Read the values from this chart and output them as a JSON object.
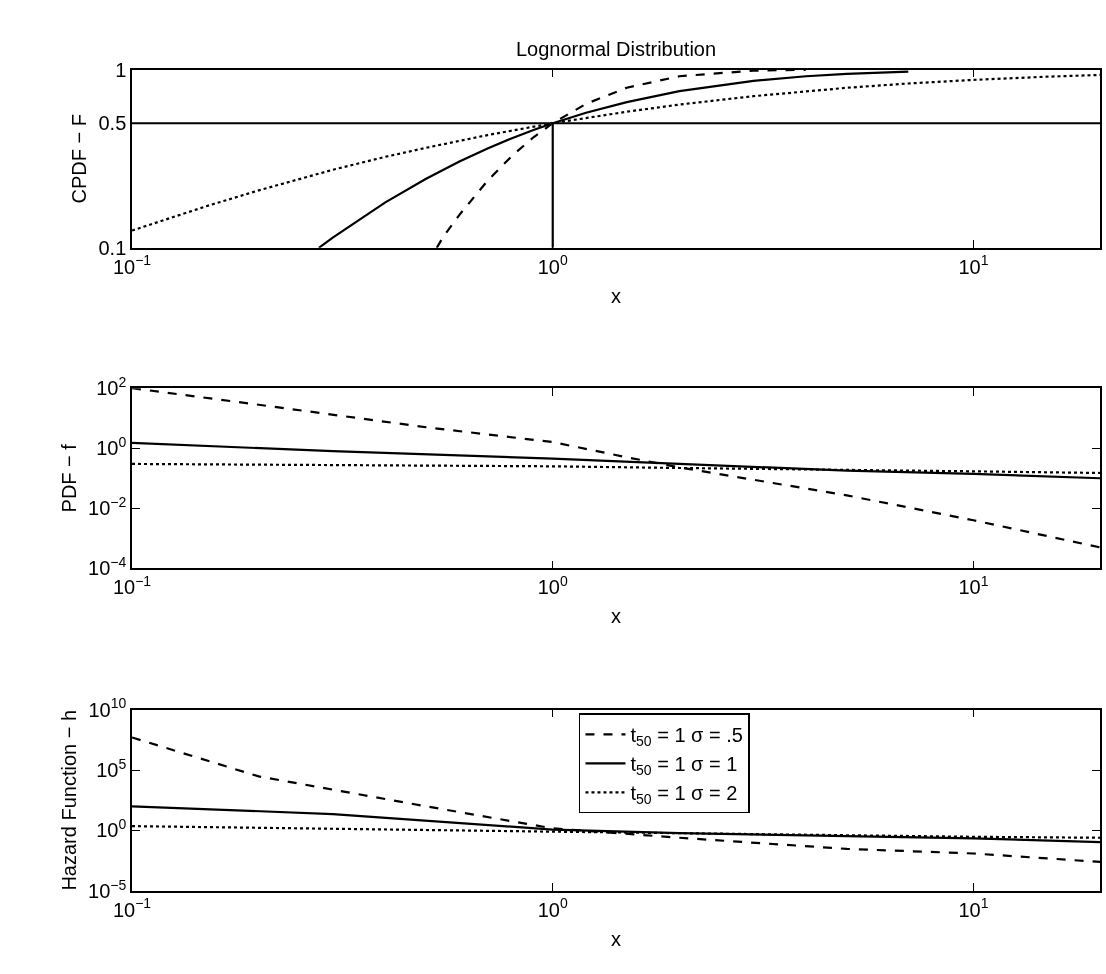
{
  "chart_data": [
    {
      "type": "line",
      "title": "Lognormal Distribution",
      "xlabel": "x",
      "ylabel": "CPDF − F",
      "log": "xy",
      "xlim": [
        0.1,
        20
      ],
      "ylim": [
        0.1,
        1
      ],
      "xticks": [
        {
          "value": 0.1,
          "label": "10$^{−1}$"
        },
        {
          "value": 1,
          "label": "10$^{0}$"
        },
        {
          "value": 10,
          "label": "10$^{1}$"
        }
      ],
      "yticks": [
        0.1,
        0.5,
        1
      ],
      "ref_lines": [
        {
          "axis": "y",
          "value": 0.5,
          "label": null,
          "color": "#000000"
        }
      ],
      "series": [
        {
          "color": "#000000",
          "line_style": "dashed",
          "x": [
            0.53,
            0.55,
            0.6,
            0.7,
            0.8,
            0.9,
            1,
            1.2,
            1.5,
            2,
            3,
            4
          ],
          "values": [
            0.1,
            0.116,
            0.153,
            0.238,
            0.328,
            0.417,
            0.5,
            0.642,
            0.791,
            0.917,
            0.986,
            0.997
          ]
        },
        {
          "color": "#000000",
          "line_style": "solid",
          "x": [
            0.278,
            0.3,
            0.4,
            0.5,
            0.6,
            0.7,
            0.8,
            0.9,
            1,
            1.2,
            1.5,
            2,
            3,
            4,
            5,
            7
          ],
          "values": [
            0.1,
            0.114,
            0.18,
            0.244,
            0.305,
            0.361,
            0.412,
            0.458,
            0.5,
            0.572,
            0.657,
            0.756,
            0.864,
            0.917,
            0.946,
            0.974
          ]
        },
        {
          "color": "#000000",
          "line_style": "dotted",
          "x": [
            0.1,
            0.15,
            0.2,
            0.3,
            0.4,
            0.5,
            0.7,
            1,
            1.5,
            2,
            3,
            5,
            7,
            10,
            15,
            20
          ],
          "values": [
            0.125,
            0.171,
            0.21,
            0.274,
            0.324,
            0.364,
            0.429,
            0.5,
            0.58,
            0.636,
            0.709,
            0.79,
            0.835,
            0.875,
            0.912,
            0.933
          ]
        },
        {
          "color": "#000000",
          "line_style": "solid",
          "x": [
            1,
            1
          ],
          "values": [
            0.1,
            0.5
          ]
        }
      ]
    },
    {
      "type": "line",
      "xlabel": "x",
      "ylabel": "PDF − f",
      "log": "xy",
      "xlim": [
        0.1,
        20
      ],
      "ylim": [
        0.0001,
        100
      ],
      "xticks": [
        {
          "value": 0.1,
          "label": "10$^{−1}$"
        },
        {
          "value": 1,
          "label": "10$^{0}$"
        },
        {
          "value": 10,
          "label": "10$^{1}$"
        }
      ],
      "yticks": [
        {
          "value": 0.0001,
          "label": "10$^{−4}$"
        },
        {
          "value": 0.01,
          "label": "10$^{−2}$"
        },
        {
          "value": 1,
          "label": "10$^{0}$"
        },
        {
          "value": 100,
          "label": "10$^{2}$"
        }
      ],
      "series": [
        {
          "color": "#000000",
          "line_style": "dashed",
          "x": [
            0.1,
            0.2,
            0.5,
            1,
            1.5,
            2,
            5,
            10,
            20
          ],
          "values": [
            100,
            28,
            5,
            1.6,
            0.5,
            0.23,
            0.027,
            0.004,
            0.0005
          ]
        },
        {
          "color": "#000000",
          "line_style": "solid",
          "x": [
            0.1,
            0.3,
            1,
            2,
            5,
            10,
            20
          ],
          "values": [
            1.5,
            0.8,
            0.45,
            0.3,
            0.18,
            0.14,
            0.1
          ]
        },
        {
          "color": "#000000",
          "line_style": "dotted",
          "x": [
            0.1,
            1,
            2,
            5,
            10,
            20
          ],
          "values": [
            0.3,
            0.25,
            0.22,
            0.19,
            0.17,
            0.15
          ]
        }
      ]
    },
    {
      "type": "line",
      "xlabel": "x",
      "ylabel": "Hazard Function − h",
      "log": "xy",
      "legend": "top",
      "xlim": [
        0.1,
        20
      ],
      "ylim": [
        1e-05,
        10000000000
      ],
      "xticks": [
        {
          "value": 0.1,
          "label": "10$^{−1}$"
        },
        {
          "value": 1,
          "label": "10$^{0}$"
        },
        {
          "value": 10,
          "label": "10$^{1}$"
        }
      ],
      "yticks": [
        {
          "value": 1e-05,
          "label": "10$^{−5}$"
        },
        {
          "value": 1,
          "label": "10$^{0}$"
        },
        {
          "value": 100000,
          "label": "10$^{5}$"
        },
        {
          "value": 10000000000,
          "label": "10$^{10}$"
        }
      ],
      "series": [
        {
          "name": "t$_{50}$ = 1 σ = .5",
          "color": "#000000",
          "line_style": "dashed",
          "x": [
            0.1,
            0.2,
            0.5,
            1,
            2,
            5,
            10,
            20
          ],
          "values": [
            50000000,
            30000,
            100,
            1.5,
            0.25,
            0.03,
            0.0125,
            0.0025
          ]
        },
        {
          "name": "t$_{50}$ = 1 σ = 1",
          "color": "#000000",
          "line_style": "solid",
          "x": [
            0.1,
            0.3,
            1,
            2,
            10,
            20
          ],
          "values": [
            100,
            23,
            1.2,
            0.6,
            0.22,
            0.11
          ]
        },
        {
          "name": "t$_{50}$ = 1 σ = 2",
          "color": "#000000",
          "line_style": "dotted",
          "x": [
            0.1,
            1,
            2,
            10,
            20
          ],
          "values": [
            2.3,
            0.8,
            0.6,
            0.3,
            0.25
          ]
        }
      ]
    }
  ]
}
